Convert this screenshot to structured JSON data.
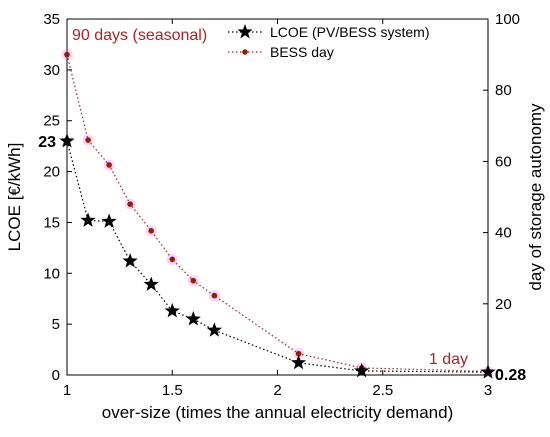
{
  "chart_data": {
    "type": "line",
    "xlabel": "over-size (times the annual electricity demand)",
    "ylabel_left": "LCOE [€/kWh]",
    "ylabel_right": "day of storage autonomy",
    "xlim": [
      1,
      3
    ],
    "ylim_left": [
      0,
      35
    ],
    "ylim_right": [
      0,
      100
    ],
    "x_ticks": [
      "1",
      "1.5",
      "2",
      "2.5",
      "3"
    ],
    "y_ticks_left": [
      "0",
      "5",
      "10",
      "15",
      "20",
      "25",
      "30",
      "35"
    ],
    "y_ticks_right": [
      "0",
      "20",
      "40",
      "60",
      "80",
      "100"
    ],
    "grid": false,
    "legend_position": "top-right",
    "series": [
      {
        "name": "LCOE (PV/BESS system)",
        "axis": "left",
        "color": "#000000",
        "marker": "star",
        "x": [
          1.0,
          1.1,
          1.2,
          1.3,
          1.4,
          1.5,
          1.6,
          1.7,
          2.1,
          2.4,
          3.0
        ],
        "y": [
          23,
          15.2,
          15.1,
          11.2,
          8.9,
          6.3,
          5.5,
          4.4,
          1.2,
          0.4,
          0.28
        ]
      },
      {
        "name": "BESS day",
        "axis": "right",
        "color": "#b22222",
        "marker": "dot",
        "x": [
          1.0,
          1.1,
          1.2,
          1.3,
          1.4,
          1.5,
          1.6,
          1.7,
          2.1,
          2.4,
          3.0
        ],
        "y": [
          90,
          66,
          59,
          48,
          40.5,
          32.5,
          26.5,
          22.3,
          6,
          2,
          1
        ]
      }
    ],
    "annotations": {
      "top_left": "90 days (seasonal)",
      "bottom_right": "1 day",
      "left_value": "23",
      "right_value": "0.28",
      "annotation_color": "#b22222"
    }
  }
}
